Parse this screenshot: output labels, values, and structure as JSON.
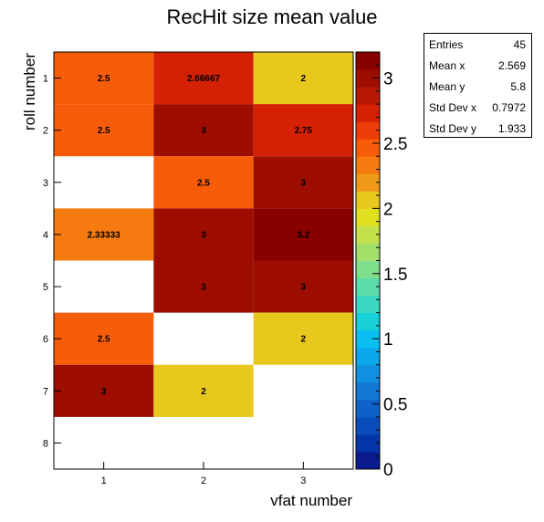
{
  "chart_data": {
    "type": "heatmap",
    "title": "RecHit size mean value",
    "xlabel": "vfat number",
    "ylabel": "roll number",
    "x_categories": [
      "1",
      "2",
      "3"
    ],
    "y_categories": [
      "1",
      "2",
      "3",
      "4",
      "5",
      "6",
      "7",
      "8"
    ],
    "cells": [
      {
        "x": 1,
        "y": 1,
        "value": 2.5,
        "label": "2.5"
      },
      {
        "x": 2,
        "y": 1,
        "value": 2.66667,
        "label": "2.66667"
      },
      {
        "x": 3,
        "y": 1,
        "value": 2,
        "label": "2"
      },
      {
        "x": 1,
        "y": 2,
        "value": 2.5,
        "label": "2.5"
      },
      {
        "x": 2,
        "y": 2,
        "value": 3,
        "label": "3"
      },
      {
        "x": 3,
        "y": 2,
        "value": 2.75,
        "label": "2.75"
      },
      {
        "x": 2,
        "y": 3,
        "value": 2.5,
        "label": "2.5"
      },
      {
        "x": 3,
        "y": 3,
        "value": 3,
        "label": "3"
      },
      {
        "x": 1,
        "y": 4,
        "value": 2.33333,
        "label": "2.33333"
      },
      {
        "x": 2,
        "y": 4,
        "value": 3,
        "label": "3"
      },
      {
        "x": 3,
        "y": 4,
        "value": 3.2,
        "label": "3.2"
      },
      {
        "x": 2,
        "y": 5,
        "value": 3,
        "label": "3"
      },
      {
        "x": 3,
        "y": 5,
        "value": 3,
        "label": "3"
      },
      {
        "x": 1,
        "y": 6,
        "value": 2.5,
        "label": "2.5"
      },
      {
        "x": 3,
        "y": 6,
        "value": 2,
        "label": "2"
      },
      {
        "x": 1,
        "y": 7,
        "value": 3,
        "label": "3"
      },
      {
        "x": 2,
        "y": 7,
        "value": 2,
        "label": "2"
      }
    ],
    "zlim": [
      0,
      3.2
    ],
    "colorbar_ticks": [
      "0",
      "0.5",
      "1",
      "1.5",
      "2",
      "2.5",
      "3"
    ],
    "colorbar_tick_values": [
      0,
      0.5,
      1,
      1.5,
      2,
      2.5,
      3
    ],
    "palette": [
      "#0b1b8f",
      "#0635a8",
      "#0a4cbc",
      "#0d62c8",
      "#1078d4",
      "#0f90e0",
      "#0aa8ea",
      "#08bfef",
      "#17d0d8",
      "#3ad8c2",
      "#5cdcaa",
      "#80df8c",
      "#a3e06a",
      "#c4e04a",
      "#e0e020",
      "#e8c81c",
      "#ee9a18",
      "#f57a10",
      "#f75c0a",
      "#ee3c08",
      "#d42004",
      "#b81802",
      "#9e0e00",
      "#880000"
    ],
    "stats": [
      {
        "label": "Entries",
        "value": "45"
      },
      {
        "label": "Mean x",
        "value": "2.569"
      },
      {
        "label": "Mean y",
        "value": "5.8"
      },
      {
        "label": "Std Dev x",
        "value": "0.7972"
      },
      {
        "label": "Std Dev y",
        "value": "1.933"
      }
    ],
    "grid": false,
    "legend": "top-right"
  }
}
